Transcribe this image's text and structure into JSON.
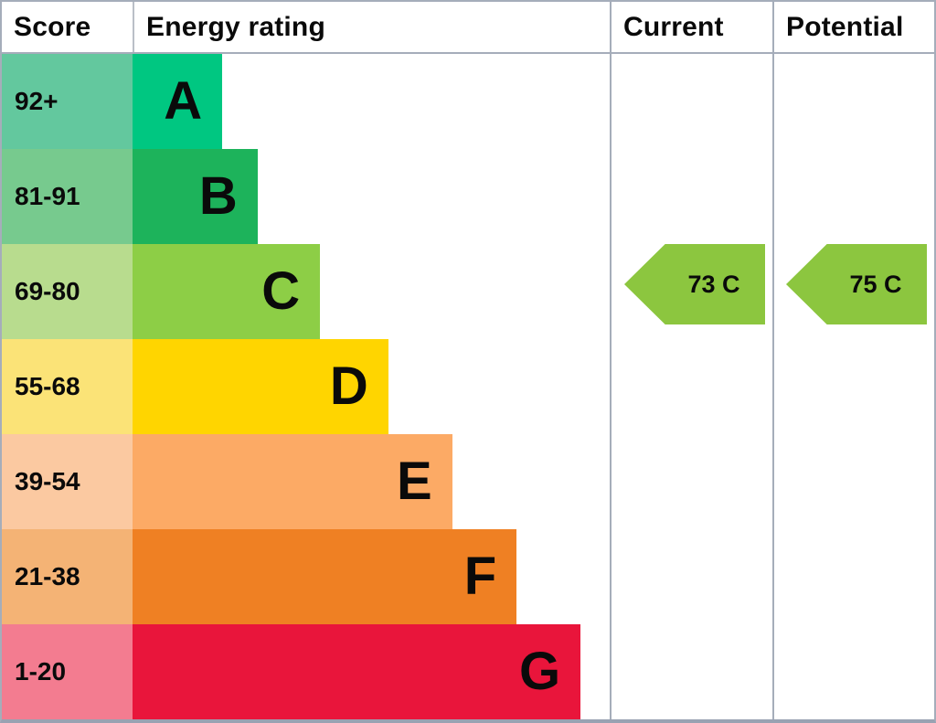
{
  "header": {
    "score": "Score",
    "energy_rating": "Energy rating",
    "current": "Current",
    "potential": "Potential"
  },
  "bands": [
    {
      "letter": "A",
      "score": "92+",
      "bar_color": "#00c781",
      "score_bg": "#63c89e",
      "width_pct": 18.8
    },
    {
      "letter": "B",
      "score": "81-91",
      "bar_color": "#1db35b",
      "score_bg": "#77ca8e",
      "width_pct": 26.2
    },
    {
      "letter": "C",
      "score": "69-80",
      "bar_color": "#8dce46",
      "score_bg": "#b8dc8e",
      "width_pct": 39.3
    },
    {
      "letter": "D",
      "score": "55-68",
      "bar_color": "#ffd500",
      "score_bg": "#fbe377",
      "width_pct": 53.6
    },
    {
      "letter": "E",
      "score": "39-54",
      "bar_color": "#fcaa65",
      "score_bg": "#fbc9a1",
      "width_pct": 67.0
    },
    {
      "letter": "F",
      "score": "21-38",
      "bar_color": "#ef8023",
      "score_bg": "#f4b375",
      "width_pct": 80.5
    },
    {
      "letter": "G",
      "score": "1-20",
      "bar_color": "#e9153b",
      "score_bg": "#f37c90",
      "width_pct": 93.9
    }
  ],
  "current": {
    "label": "73 C",
    "value": 73,
    "band": "C",
    "arrow_color": "#8cc63f"
  },
  "potential": {
    "label": "75 C",
    "value": 75,
    "band": "C",
    "arrow_color": "#8cc63f"
  },
  "chart_data": {
    "type": "bar",
    "orientation": "horizontal",
    "title": "Energy rating (EPC band chart)",
    "columns": [
      "Score",
      "Energy rating",
      "Current",
      "Potential"
    ],
    "categories": [
      "A",
      "B",
      "C",
      "D",
      "E",
      "F",
      "G"
    ],
    "score_ranges": [
      "92+",
      "81-91",
      "69-80",
      "55-68",
      "39-54",
      "21-38",
      "1-20"
    ],
    "bar_lengths_relative": [
      0.19,
      0.26,
      0.39,
      0.54,
      0.67,
      0.81,
      0.94
    ],
    "band_colors": [
      "#00c781",
      "#1db35b",
      "#8dce46",
      "#ffd500",
      "#fcaa65",
      "#ef8023",
      "#e9153b"
    ],
    "markers": [
      {
        "name": "Current",
        "value": 73,
        "band": "C"
      },
      {
        "name": "Potential",
        "value": 75,
        "band": "C"
      }
    ],
    "legend": false,
    "grid": false
  }
}
